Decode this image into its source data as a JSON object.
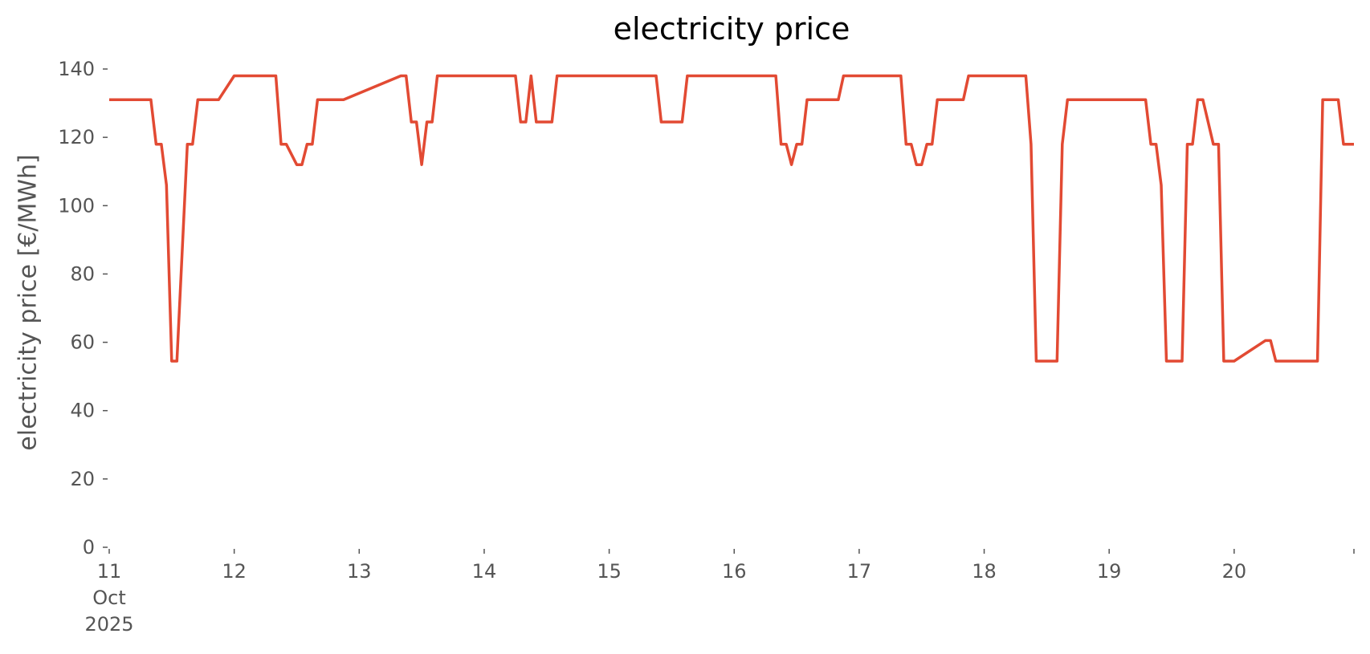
{
  "chart_data": {
    "type": "line",
    "title": "electricity price",
    "xlabel": "",
    "ylabel": "electricity price [€/MWh]",
    "ylim": [
      0,
      140
    ],
    "xlim": [
      "2025-10-11 00:00",
      "2025-10-20 23:00"
    ],
    "grid": false,
    "legend": null,
    "line_color": "#E24A33",
    "y_ticks": [
      0,
      20,
      40,
      60,
      80,
      100,
      120,
      140
    ],
    "x_ticks": [
      {
        "date": "2025-10-11",
        "label": [
          "11",
          "Oct",
          "2025"
        ]
      },
      {
        "date": "2025-10-12",
        "label": [
          "12"
        ]
      },
      {
        "date": "2025-10-13",
        "label": [
          "13"
        ]
      },
      {
        "date": "2025-10-14",
        "label": [
          "14"
        ]
      },
      {
        "date": "2025-10-15",
        "label": [
          "15"
        ]
      },
      {
        "date": "2025-10-16",
        "label": [
          "16"
        ]
      },
      {
        "date": "2025-10-17",
        "label": [
          "17"
        ]
      },
      {
        "date": "2025-10-18",
        "label": [
          "18"
        ]
      },
      {
        "date": "2025-10-19",
        "label": [
          "19"
        ]
      },
      {
        "date": "2025-10-20",
        "label": [
          "20"
        ]
      }
    ],
    "series": [
      {
        "x": [
          "2025-10-11 00:00",
          "2025-10-11 08:00",
          "2025-10-11 09:00",
          "2025-10-11 10:00",
          "2025-10-11 11:00",
          "2025-10-11 12:00",
          "2025-10-11 13:00",
          "2025-10-11 15:00",
          "2025-10-11 16:00",
          "2025-10-11 17:00",
          "2025-10-11 20:00",
          "2025-10-11 21:00",
          "2025-10-12 00:00",
          "2025-10-12 08:00",
          "2025-10-12 09:00",
          "2025-10-12 10:00",
          "2025-10-12 12:00",
          "2025-10-12 13:00",
          "2025-10-12 14:00",
          "2025-10-12 15:00",
          "2025-10-12 16:00",
          "2025-10-12 20:00",
          "2025-10-12 21:00",
          "2025-10-13 08:00",
          "2025-10-13 09:00",
          "2025-10-13 10:00",
          "2025-10-13 11:00",
          "2025-10-13 12:00",
          "2025-10-13 13:00",
          "2025-10-13 14:00",
          "2025-10-13 15:00",
          "2025-10-13 16:00",
          "2025-10-14 06:00",
          "2025-10-14 07:00",
          "2025-10-14 08:00",
          "2025-10-14 09:00",
          "2025-10-14 10:00",
          "2025-10-14 11:00",
          "2025-10-14 12:00",
          "2025-10-14 13:00",
          "2025-10-14 14:00",
          "2025-10-14 15:00",
          "2025-10-14 16:00",
          "2025-10-15 09:00",
          "2025-10-15 10:00",
          "2025-10-15 14:00",
          "2025-10-15 15:00",
          "2025-10-16 08:00",
          "2025-10-16 09:00",
          "2025-10-16 10:00",
          "2025-10-16 11:00",
          "2025-10-16 12:00",
          "2025-10-16 13:00",
          "2025-10-16 14:00",
          "2025-10-16 15:00",
          "2025-10-16 16:00",
          "2025-10-16 20:00",
          "2025-10-16 21:00",
          "2025-10-17 08:00",
          "2025-10-17 09:00",
          "2025-10-17 10:00",
          "2025-10-17 11:00",
          "2025-10-17 12:00",
          "2025-10-17 13:00",
          "2025-10-17 14:00",
          "2025-10-17 15:00",
          "2025-10-17 16:00",
          "2025-10-17 20:00",
          "2025-10-17 21:00",
          "2025-10-18 08:00",
          "2025-10-18 09:00",
          "2025-10-18 10:00",
          "2025-10-18 11:00",
          "2025-10-18 13:00",
          "2025-10-18 14:00",
          "2025-10-18 15:00",
          "2025-10-18 16:00",
          "2025-10-18 17:00",
          "2025-10-19 07:00",
          "2025-10-19 08:00",
          "2025-10-19 09:00",
          "2025-10-19 10:00",
          "2025-10-19 11:00",
          "2025-10-19 14:00",
          "2025-10-19 15:00",
          "2025-10-19 16:00",
          "2025-10-19 17:00",
          "2025-10-19 18:00",
          "2025-10-19 20:00",
          "2025-10-19 21:00",
          "2025-10-19 22:00",
          "2025-10-20 00:00",
          "2025-10-20 06:00",
          "2025-10-20 07:00",
          "2025-10-20 08:00",
          "2025-10-20 09:00",
          "2025-10-20 16:00",
          "2025-10-20 17:00",
          "2025-10-20 20:00",
          "2025-10-20 21:00",
          "2025-10-20 23:00"
        ],
        "values": [
          131,
          131,
          118,
          118,
          106,
          54.5,
          54.5,
          118,
          118,
          131,
          131,
          131,
          138,
          138,
          118,
          118,
          112,
          112,
          118,
          118,
          131,
          131,
          131,
          138,
          138,
          124.5,
          124.5,
          112,
          124.5,
          124.5,
          138,
          138,
          138,
          124.5,
          124.5,
          138,
          124.5,
          124.5,
          124.5,
          124.5,
          138,
          138,
          138,
          138,
          124.5,
          124.5,
          138,
          138,
          118,
          118,
          112,
          118,
          118,
          131,
          131,
          131,
          131,
          138,
          138,
          118,
          118,
          112,
          112,
          118,
          118,
          131,
          131,
          131,
          138,
          138,
          118,
          54.5,
          54.5,
          54.5,
          54.5,
          118,
          131,
          131,
          131,
          118,
          118,
          106,
          54.5,
          54.5,
          118,
          118,
          131,
          131,
          118,
          118,
          54.5,
          54.5,
          60.5,
          60.5,
          54.5,
          54.5,
          54.5,
          131,
          131,
          118,
          118
        ]
      }
    ]
  }
}
